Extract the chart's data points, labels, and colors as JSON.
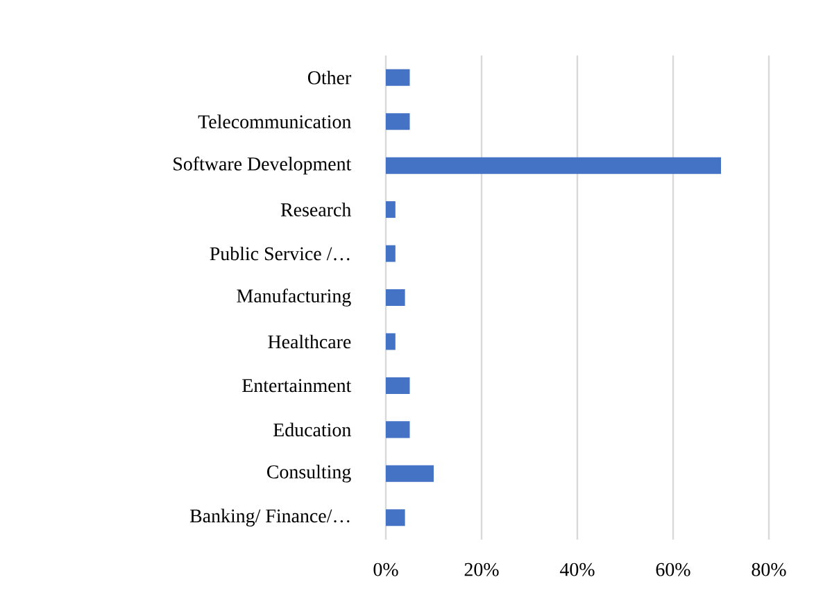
{
  "chart_data": {
    "type": "bar",
    "orientation": "horizontal",
    "categories": [
      "Other",
      "Telecommunication",
      "Software Development",
      "Research",
      "Public Service /…",
      "Manufacturing",
      "Healthcare",
      "Entertainment",
      "Education",
      "Consulting",
      "Banking/ Finance/…"
    ],
    "values": [
      5,
      5,
      70,
      2,
      2,
      4,
      2,
      5,
      5,
      10,
      4
    ],
    "color": "#4472c4",
    "xlim": [
      0,
      80
    ],
    "xticks": [
      {
        "value": 0,
        "label": "0%"
      },
      {
        "value": 20,
        "label": "20%"
      },
      {
        "value": 40,
        "label": "40%"
      },
      {
        "value": 60,
        "label": "60%"
      },
      {
        "value": 80,
        "label": "80%"
      }
    ],
    "grid": "x"
  }
}
